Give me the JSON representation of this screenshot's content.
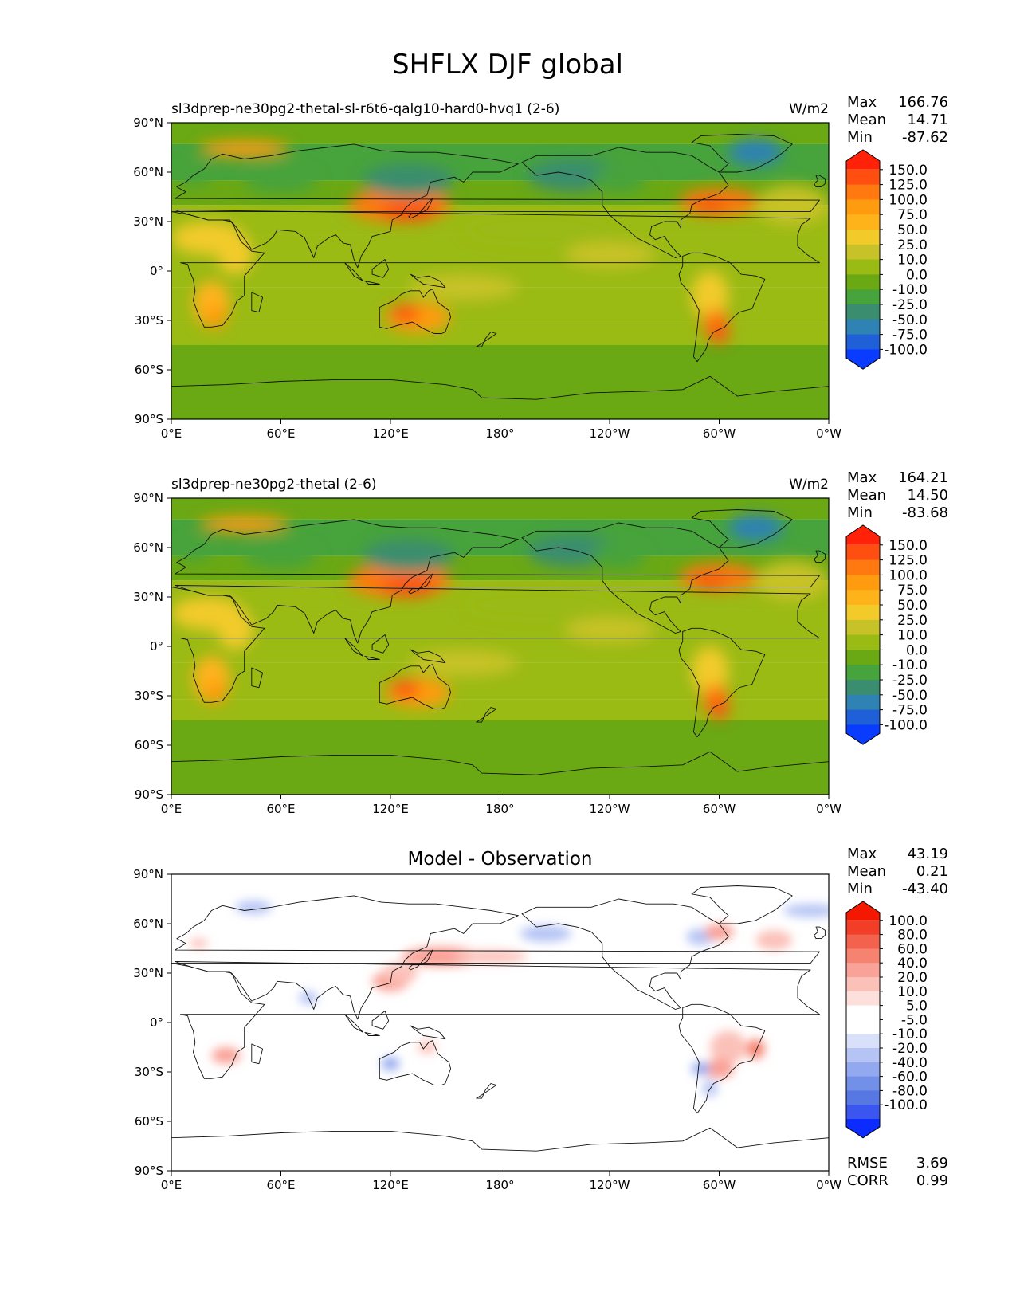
{
  "figure": {
    "title": "SHFLX DJF global"
  },
  "palettes": {
    "model": [
      "#0a3cff",
      "#1f5fd7",
      "#2f82b4",
      "#3a8d6e",
      "#47a33b",
      "#6aa814",
      "#9aba14",
      "#c7c227",
      "#f2cb2a",
      "#ffb31a",
      "#ff9b0f",
      "#ff7810",
      "#ff4f10",
      "#ff2208"
    ],
    "diff": [
      "#0b2bff",
      "#3a56ee",
      "#5777e3",
      "#7290e8",
      "#93a9ef",
      "#b5c4f4",
      "#d8e0fa",
      "#ffffff",
      "#ffffff",
      "#fde0dc",
      "#fbc1b9",
      "#f9a297",
      "#f6836f",
      "#f3624c",
      "#f23e26",
      "#f51800"
    ]
  },
  "chart_data": [
    {
      "type": "heatmap",
      "title_left": "sl3dprep-ne30pg2-thetal-sl-r6t6-qalg10-hard0-hvq1 (2-6)",
      "title_center": "",
      "units": "W/m2",
      "stats": [
        {
          "label": "Max",
          "value": "166.76"
        },
        {
          "label": "Mean",
          "value": "14.71"
        },
        {
          "label": "Min",
          "value": "-87.62"
        }
      ],
      "colorbar_levels": [
        "150.0",
        "125.0",
        "100.0",
        "75.0",
        "50.0",
        "25.0",
        "10.0",
        "0.0",
        "-10.0",
        "-25.0",
        "-50.0",
        "-75.0",
        "-100.0"
      ],
      "palette": "model",
      "x_ticks": [
        "0°E",
        "60°E",
        "120°E",
        "180°",
        "120°W",
        "60°W",
        "0°W"
      ],
      "y_ticks": [
        "90°N",
        "60°N",
        "30°N",
        "0°",
        "30°S",
        "60°S",
        "90°S"
      ],
      "xlim": [
        0,
        360
      ],
      "ylim": [
        -90,
        90
      ],
      "extra_stats": []
    },
    {
      "type": "heatmap",
      "title_left": "sl3dprep-ne30pg2-thetal (2-6)",
      "title_center": "",
      "units": "W/m2",
      "stats": [
        {
          "label": "Max",
          "value": "164.21"
        },
        {
          "label": "Mean",
          "value": "14.50"
        },
        {
          "label": "Min",
          "value": "-83.68"
        }
      ],
      "colorbar_levels": [
        "150.0",
        "125.0",
        "100.0",
        "75.0",
        "50.0",
        "25.0",
        "10.0",
        "0.0",
        "-10.0",
        "-25.0",
        "-50.0",
        "-75.0",
        "-100.0"
      ],
      "palette": "model",
      "x_ticks": [
        "0°E",
        "60°E",
        "120°E",
        "180°",
        "120°W",
        "60°W",
        "0°W"
      ],
      "y_ticks": [
        "90°N",
        "60°N",
        "30°N",
        "0°",
        "30°S",
        "60°S",
        "90°S"
      ],
      "xlim": [
        0,
        360
      ],
      "ylim": [
        -90,
        90
      ],
      "extra_stats": []
    },
    {
      "type": "heatmap",
      "title_left": "",
      "title_center": "Model - Observation",
      "units": "",
      "stats": [
        {
          "label": "Max",
          "value": "43.19"
        },
        {
          "label": "Mean",
          "value": "0.21"
        },
        {
          "label": "Min",
          "value": "-43.40"
        }
      ],
      "colorbar_levels": [
        "100.0",
        "80.0",
        "60.0",
        "40.0",
        "20.0",
        "10.0",
        "5.0",
        "-5.0",
        "-10.0",
        "-20.0",
        "-40.0",
        "-60.0",
        "-80.0",
        "-100.0"
      ],
      "palette": "diff",
      "x_ticks": [
        "0°E",
        "60°E",
        "120°E",
        "180°",
        "120°W",
        "60°W",
        "0°W"
      ],
      "y_ticks": [
        "90°N",
        "60°N",
        "30°N",
        "0°",
        "30°S",
        "60°S",
        "90°S"
      ],
      "xlim": [
        0,
        360
      ],
      "ylim": [
        -90,
        90
      ],
      "extra_stats": [
        {
          "label": "RMSE",
          "value": "3.69"
        },
        {
          "label": "CORR",
          "value": "0.99"
        }
      ]
    }
  ]
}
